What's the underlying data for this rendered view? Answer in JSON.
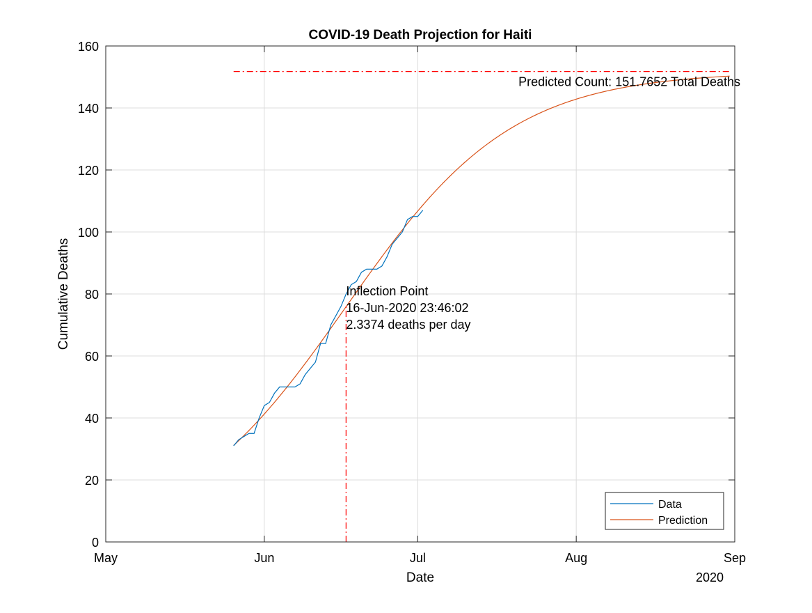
{
  "chart_data": {
    "type": "line",
    "title": "COVID-19 Death Projection for Haiti",
    "xlabel": "Date",
    "ylabel": "Cumulative Deaths",
    "x_axis": {
      "type": "date",
      "range": [
        "2020-05-01",
        "2020-09-01"
      ],
      "ticks": [
        {
          "date": "2020-05-01",
          "label": "May"
        },
        {
          "date": "2020-06-01",
          "label": "Jun"
        },
        {
          "date": "2020-07-01",
          "label": "Jul"
        },
        {
          "date": "2020-08-01",
          "label": "Aug"
        },
        {
          "date": "2020-09-01",
          "label": "Sep"
        }
      ],
      "secondary_label": "2020"
    },
    "y_axis": {
      "range": [
        0,
        160
      ],
      "ticks": [
        0,
        20,
        40,
        60,
        80,
        100,
        120,
        140,
        160
      ]
    },
    "grid": true,
    "legend": {
      "position": "bottom-right",
      "entries": [
        {
          "name": "Data",
          "color": "#0072BD"
        },
        {
          "name": "Prediction",
          "color": "#D95319"
        }
      ]
    },
    "series": [
      {
        "name": "Data",
        "color": "#0072BD",
        "x": [
          "2020-05-26",
          "2020-05-27",
          "2020-05-28",
          "2020-05-29",
          "2020-05-30",
          "2020-05-31",
          "2020-06-01",
          "2020-06-02",
          "2020-06-03",
          "2020-06-04",
          "2020-06-05",
          "2020-06-06",
          "2020-06-07",
          "2020-06-08",
          "2020-06-09",
          "2020-06-10",
          "2020-06-11",
          "2020-06-12",
          "2020-06-13",
          "2020-06-14",
          "2020-06-15",
          "2020-06-16",
          "2020-06-17",
          "2020-06-18",
          "2020-06-19",
          "2020-06-20",
          "2020-06-21",
          "2020-06-22",
          "2020-06-23",
          "2020-06-24",
          "2020-06-25",
          "2020-06-26",
          "2020-06-27",
          "2020-06-28",
          "2020-06-29",
          "2020-06-30",
          "2020-07-01",
          "2020-07-02"
        ],
        "y": [
          31,
          33,
          34,
          35,
          35,
          40,
          44,
          45,
          48,
          50,
          50,
          50,
          50,
          51,
          54,
          56,
          58,
          64,
          64,
          70,
          73,
          76,
          80,
          83,
          84,
          87,
          88,
          88,
          88,
          89,
          92,
          96,
          98,
          100,
          104,
          105,
          105,
          107
        ]
      },
      {
        "name": "Prediction",
        "color": "#D95319",
        "model": "logistic",
        "params": {
          "K": 151.7652,
          "inflection": "2020-06-16T23:46:02",
          "max_rate_per_day": 2.3374
        },
        "x_range": [
          "2020-05-26",
          "2020-08-31"
        ]
      }
    ],
    "annotations": {
      "predicted_count": {
        "label": "Predicted Count: 151.7652 Total Deaths",
        "value": 151.7652,
        "x_start": "2020-05-26",
        "x_end": "2020-08-31",
        "color": "#FF0000",
        "style": "dash-dot"
      },
      "inflection": {
        "lines": [
          "Inflection Point",
          "16-Jun-2020 23:46:02",
          "2.3374 deaths per day"
        ],
        "date": "2020-06-16T23:46:02",
        "y_top": 76,
        "color": "#FF0000",
        "style": "dash-dot"
      }
    }
  }
}
